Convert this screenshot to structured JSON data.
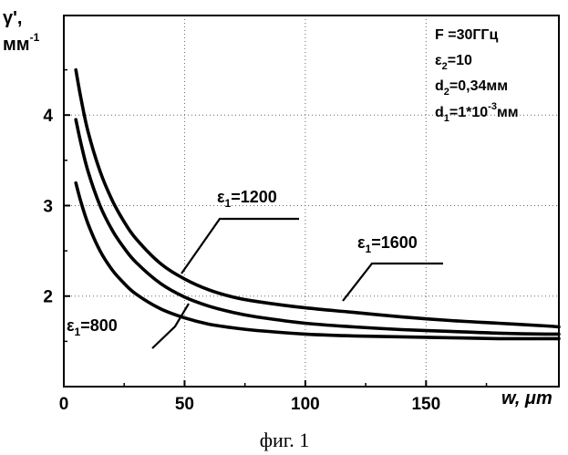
{
  "chart_data": {
    "type": "line",
    "title": "",
    "xlabel": "w, μm",
    "ylabel": "γ',",
    "ylabel_unit": "мм",
    "ylabel_unit_exp": "-1",
    "xlim": [
      0,
      205
    ],
    "ylim": [
      1.0,
      5.1
    ],
    "x_ticks": [
      0,
      50,
      100,
      150
    ],
    "y_ticks": [
      2,
      3,
      4
    ],
    "grid": true,
    "caption": "фиг. 1",
    "parameters": {
      "F": "F =30ГГц",
      "e2_base": "ε",
      "e2_sub": "2",
      "e2_value": "=10",
      "d2_base": "d",
      "d2_sub": "2",
      "d2_value": "=0,34мм",
      "d1_base": "d",
      "d1_sub": "1",
      "d1_value": "=1*10",
      "d1_exp": "-3",
      "d1_unit": "мм"
    },
    "series": [
      {
        "name": "ε₁=1600",
        "label_base": "ε",
        "label_sub": "1",
        "label_value": "=1600",
        "x": [
          5,
          7,
          10,
          15,
          20,
          25,
          30,
          40,
          50,
          60,
          70,
          80,
          100,
          120,
          140,
          160,
          180,
          200,
          205
        ],
        "y": [
          4.5,
          4.2,
          3.82,
          3.38,
          3.06,
          2.82,
          2.63,
          2.36,
          2.19,
          2.07,
          1.99,
          1.94,
          1.87,
          1.82,
          1.77,
          1.73,
          1.7,
          1.67,
          1.66
        ]
      },
      {
        "name": "ε₁=1200",
        "label_base": "ε",
        "label_sub": "1",
        "label_value": "=1200",
        "x": [
          5,
          7,
          10,
          15,
          20,
          25,
          30,
          40,
          50,
          60,
          70,
          80,
          100,
          120,
          140,
          160,
          180,
          200,
          205
        ],
        "y": [
          3.95,
          3.7,
          3.38,
          3.0,
          2.73,
          2.53,
          2.37,
          2.14,
          1.99,
          1.89,
          1.82,
          1.77,
          1.7,
          1.66,
          1.63,
          1.61,
          1.59,
          1.58,
          1.58
        ]
      },
      {
        "name": "ε₁=800",
        "label_base": "ε",
        "label_sub": "1",
        "label_value": "=800",
        "x": [
          5,
          7,
          10,
          15,
          20,
          25,
          30,
          40,
          50,
          60,
          70,
          80,
          100,
          120,
          140,
          160,
          180,
          200,
          205
        ],
        "y": [
          3.25,
          3.05,
          2.8,
          2.5,
          2.29,
          2.14,
          2.02,
          1.86,
          1.76,
          1.69,
          1.65,
          1.62,
          1.58,
          1.56,
          1.55,
          1.54,
          1.53,
          1.53,
          1.53
        ]
      }
    ]
  }
}
